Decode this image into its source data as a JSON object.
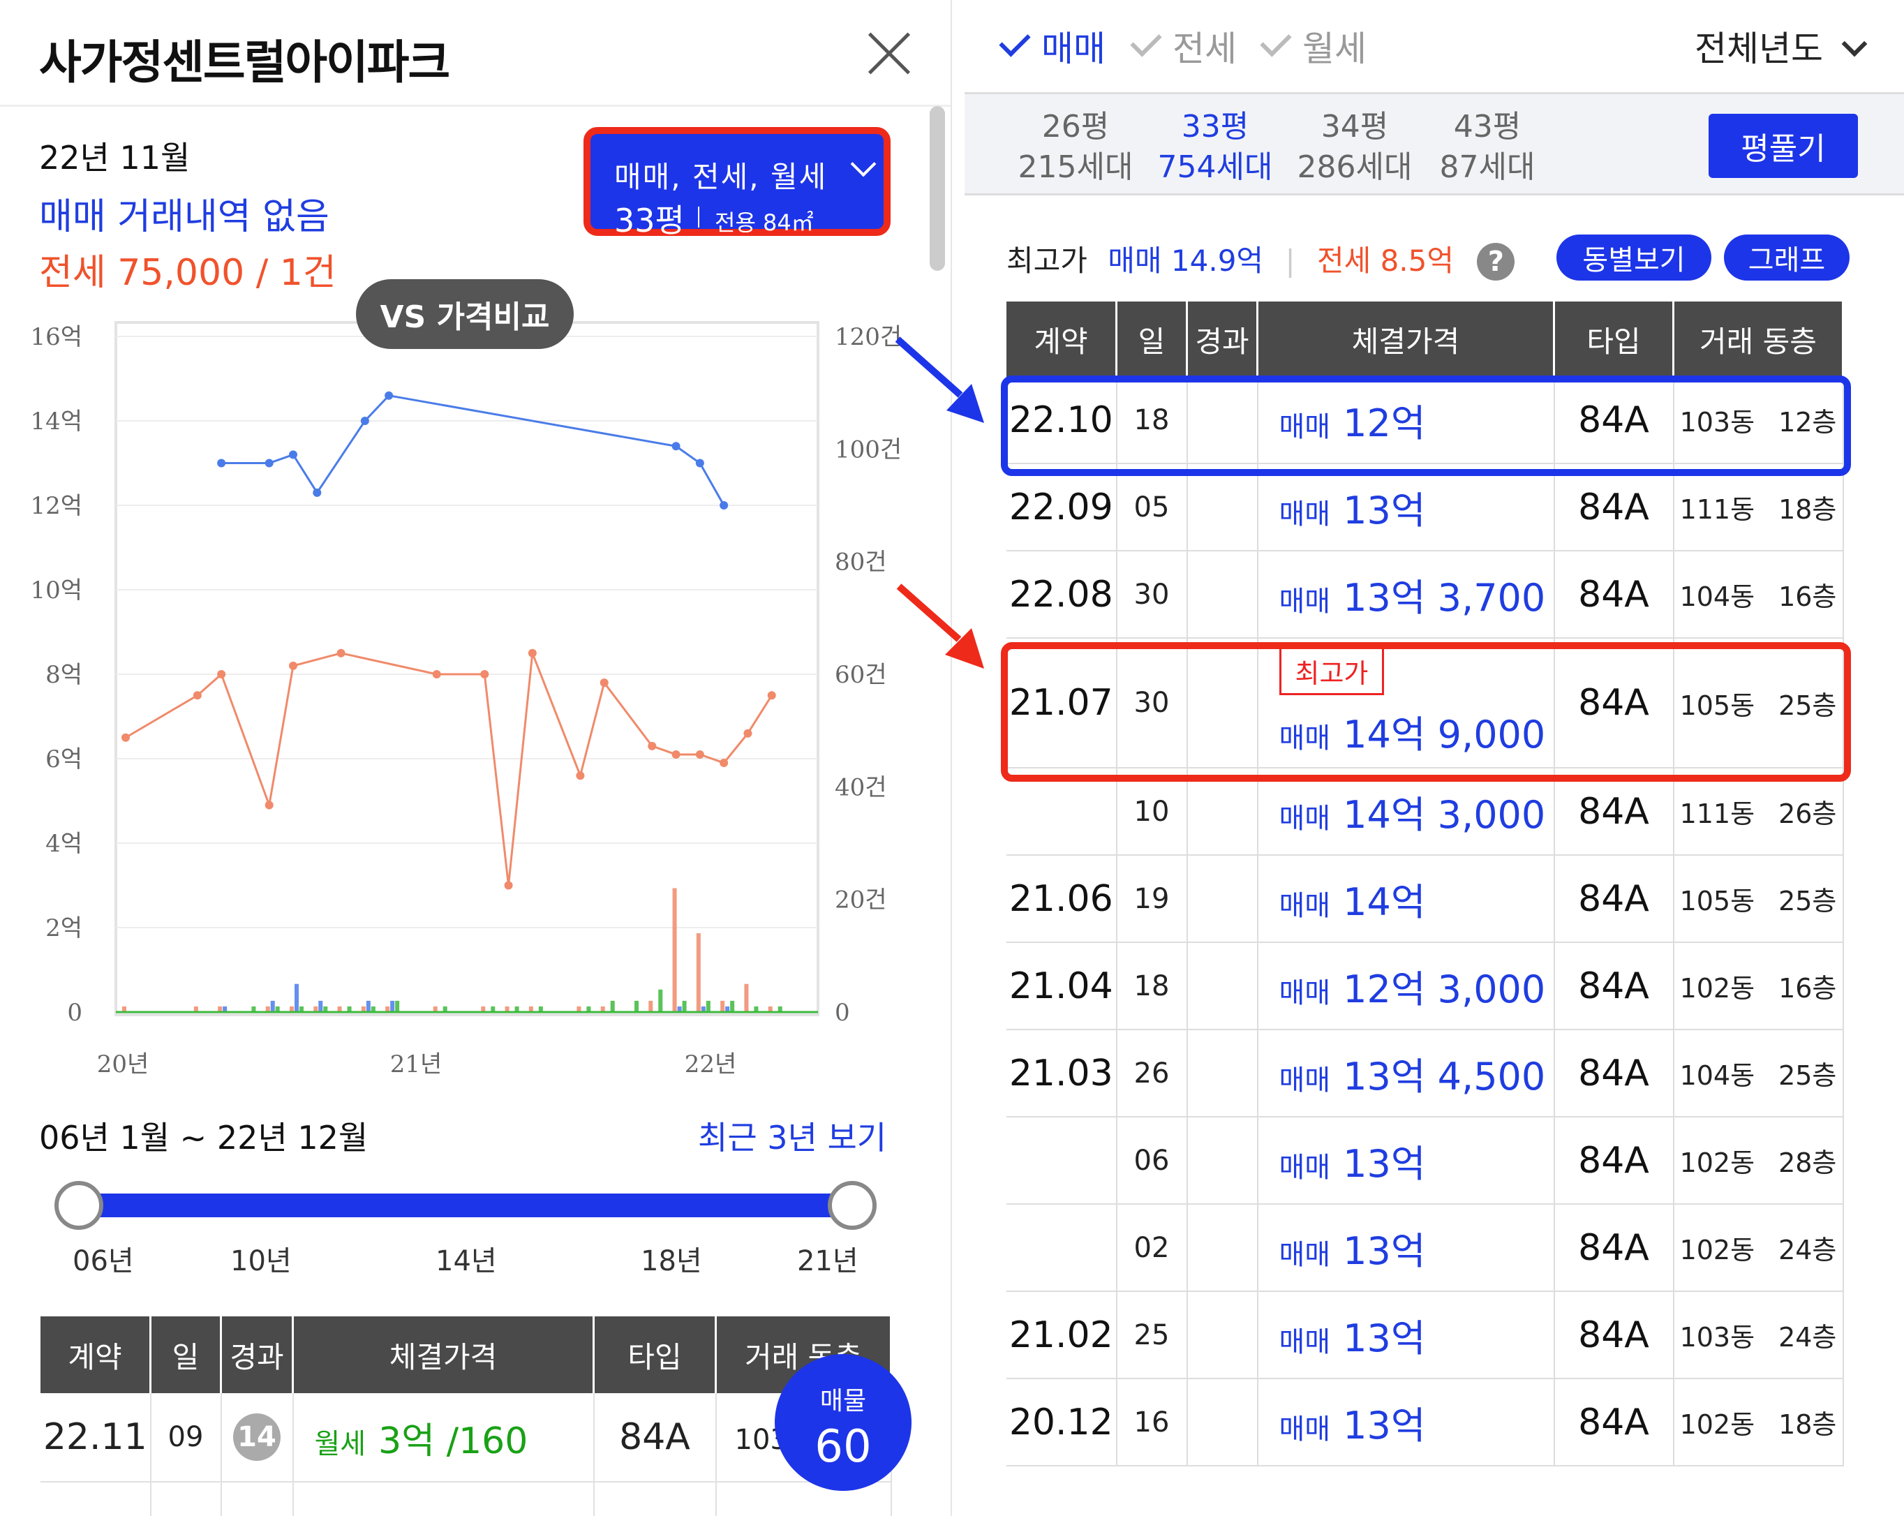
{
  "left": {
    "title": "사가정센트럴아이파크",
    "date": "22년 11월",
    "no_deal": "매매 거래내역 없음",
    "jeonse": "전세 75,000 / 1건",
    "filter": {
      "types": "매매, 전세, 월세",
      "size": "33평",
      "area": "전용 84㎡"
    },
    "vs_button": "VS 가격비교",
    "range_label": "06년 1월 ~ 22년 12월",
    "recent_link": "최근 3년 보기",
    "slider_ticks": [
      "06년",
      "10년",
      "14년",
      "18년",
      "21년"
    ],
    "table": {
      "headers": [
        "계약",
        "일",
        "경과",
        "체결가격",
        "타입",
        "거래 동층"
      ],
      "row": {
        "ym": "22.11",
        "day": "09",
        "elapsed": "14",
        "kind": "월세",
        "price": "3억 /160",
        "type": "84A",
        "dong": "103동"
      }
    },
    "listing_button": {
      "label": "매물",
      "count": "60"
    }
  },
  "chart_data": {
    "type": "line",
    "y_left_ticks": [
      "16억",
      "14억",
      "12억",
      "10억",
      "8억",
      "6억",
      "4억",
      "2억",
      "0"
    ],
    "y_right_ticks": [
      "120건",
      "100건",
      "80건",
      "60건",
      "40건",
      "20건",
      "0"
    ],
    "x_ticks": [
      "20년",
      "21년",
      "22년"
    ],
    "ylim_left": [
      0,
      16
    ],
    "ylim_right": [
      0,
      120
    ],
    "xlim": [
      0,
      28
    ],
    "series": [
      {
        "color": "#4a7ce8",
        "x": [
          4,
          6,
          7,
          8,
          10,
          11,
          23,
          24,
          25
        ],
        "y": [
          13.0,
          13.0,
          13.2,
          12.3,
          14.0,
          14.6,
          13.4,
          13.0,
          12.0
        ]
      },
      {
        "color": "#f08a6a",
        "x": [
          0,
          3,
          4,
          6,
          7,
          9,
          13,
          15,
          16,
          17,
          19,
          20,
          22,
          23,
          24,
          25,
          26,
          27
        ],
        "y": [
          6.5,
          7.5,
          8.0,
          4.9,
          8.2,
          8.5,
          8.0,
          8.0,
          3.0,
          8.5,
          5.6,
          7.8,
          6.3,
          6.1,
          6.1,
          5.9,
          6.6,
          7.5
        ]
      }
    ],
    "volume_bars": [
      {
        "color": "#f08a6a",
        "x": [
          0,
          3,
          4,
          6,
          7,
          8,
          9,
          10,
          11,
          13,
          15,
          16,
          17,
          19,
          20,
          22,
          23,
          24,
          25,
          26,
          27
        ],
        "y": [
          1,
          1,
          1,
          1,
          1,
          1,
          1,
          1,
          1,
          1,
          1,
          1,
          1,
          1,
          1,
          2,
          22,
          14,
          2,
          5,
          1
        ]
      },
      {
        "color": "#4a7ce8",
        "x": [
          4,
          6,
          7,
          8,
          10,
          11,
          23,
          24,
          25
        ],
        "y": [
          1,
          2,
          5,
          2,
          2,
          2,
          1,
          1,
          1
        ]
      },
      {
        "color": "#3cb83c",
        "x": [
          5,
          6,
          7,
          8,
          9,
          10,
          11,
          13,
          15,
          16,
          17,
          19,
          20,
          21,
          22,
          23,
          24,
          25,
          26,
          27
        ],
        "y": [
          1,
          1,
          1,
          1,
          1,
          1,
          2,
          1,
          1,
          1,
          1,
          1,
          2,
          2,
          4,
          2,
          2,
          2,
          1,
          1
        ]
      }
    ]
  },
  "right": {
    "tabs": [
      {
        "label": "매매",
        "active": true
      },
      {
        "label": "전세",
        "active": false
      },
      {
        "label": "월세",
        "active": false
      }
    ],
    "year_select": "전체년도",
    "sizes": [
      {
        "size": "26평",
        "households": "215세대",
        "active": false
      },
      {
        "size": "33평",
        "households": "754세대",
        "active": true
      },
      {
        "size": "34평",
        "households": "286세대",
        "active": false
      },
      {
        "size": "43평",
        "households": "87세대",
        "active": false
      }
    ],
    "pyeong_button": "평풀기",
    "max_label": "최고가",
    "max_sale": "매매 14.9억",
    "max_jeonse": "전세 8.5억",
    "help": "?",
    "dong_button": "동별보기",
    "graph_button": "그래프",
    "max_tag": "최고가",
    "headers": [
      "계약",
      "일",
      "경과",
      "체결가격",
      "타입",
      "거래 동층"
    ],
    "rows": [
      {
        "ym": "22.10",
        "day": "18",
        "kind": "매매",
        "price": "12억",
        "type": "84A",
        "dong": "103동",
        "floor": "12층"
      },
      {
        "ym": "22.09",
        "day": "05",
        "kind": "매매",
        "price": "13억",
        "type": "84A",
        "dong": "111동",
        "floor": "18층"
      },
      {
        "ym": "22.08",
        "day": "30",
        "kind": "매매",
        "price": "13억 3,700",
        "type": "84A",
        "dong": "104동",
        "floor": "16층"
      },
      {
        "ym": "21.07",
        "day": "30",
        "kind": "매매",
        "price": "14억 9,000",
        "type": "84A",
        "dong": "105동",
        "floor": "25층"
      },
      {
        "ym": "",
        "day": "10",
        "kind": "매매",
        "price": "14억 3,000",
        "type": "84A",
        "dong": "111동",
        "floor": "26층"
      },
      {
        "ym": "21.06",
        "day": "19",
        "kind": "매매",
        "price": "14억",
        "type": "84A",
        "dong": "105동",
        "floor": "25층"
      },
      {
        "ym": "21.04",
        "day": "18",
        "kind": "매매",
        "price": "12억 3,000",
        "type": "84A",
        "dong": "102동",
        "floor": "16층"
      },
      {
        "ym": "21.03",
        "day": "26",
        "kind": "매매",
        "price": "13억 4,500",
        "type": "84A",
        "dong": "104동",
        "floor": "25층"
      },
      {
        "ym": "",
        "day": "06",
        "kind": "매매",
        "price": "13억",
        "type": "84A",
        "dong": "102동",
        "floor": "28층"
      },
      {
        "ym": "",
        "day": "02",
        "kind": "매매",
        "price": "13억",
        "type": "84A",
        "dong": "102동",
        "floor": "24층"
      },
      {
        "ym": "21.02",
        "day": "25",
        "kind": "매매",
        "price": "13억",
        "type": "84A",
        "dong": "103동",
        "floor": "24층"
      },
      {
        "ym": "20.12",
        "day": "16",
        "kind": "매매",
        "price": "13억",
        "type": "84A",
        "dong": "102동",
        "floor": "18층"
      }
    ]
  }
}
